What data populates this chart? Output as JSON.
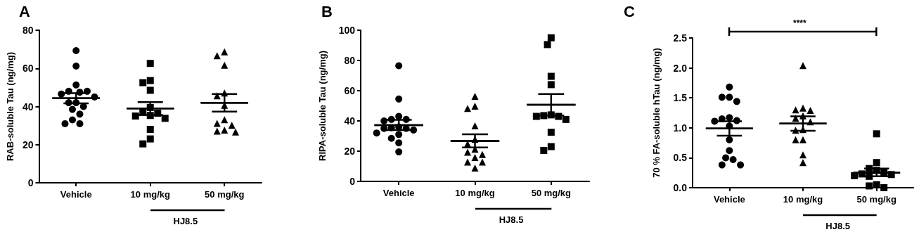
{
  "chart_data": [
    {
      "type": "scatter",
      "title": "A",
      "ylabel": "RAB-soluble Tau (ng/mg)",
      "categories": [
        "Vehicle",
        "10 mg/kg",
        "50 mg/kg"
      ],
      "ylim": [
        0,
        80
      ],
      "yticks": [
        0,
        20,
        40,
        60,
        80
      ],
      "annotations": [
        "HJ8.5"
      ],
      "series": [
        {
          "x": [
            "Vehicle",
            "Vehicle",
            "Vehicle",
            "Vehicle",
            "Vehicle",
            "Vehicle",
            "Vehicle",
            "Vehicle",
            "Vehicle",
            "Vehicle",
            "Vehicle",
            "Vehicle",
            "Vehicle",
            "Vehicle",
            "Vehicle",
            "Vehicle"
          ],
          "values": [
            69.3,
            61.2,
            51.3,
            48,
            47.5,
            48,
            46.5,
            45,
            42,
            42,
            40,
            38.5,
            36,
            33,
            31,
            31
          ],
          "marker": "circle",
          "color": "#000000"
        },
        {
          "x": [
            "10 mg/kg",
            "10 mg/kg",
            "10 mg/kg",
            "10 mg/kg",
            "10 mg/kg",
            "10 mg/kg",
            "10 mg/kg",
            "10 mg/kg",
            "10 mg/kg",
            "10 mg/kg",
            "10 mg/kg",
            "10 mg/kg",
            "10 mg/kg"
          ],
          "values": [
            62.6,
            53.6,
            52.5,
            48.5,
            39.5,
            37,
            36.5,
            35.3,
            35,
            33.8,
            28,
            23,
            20.4
          ],
          "marker": "square",
          "color": "#000000"
        },
        {
          "x": [
            "50 mg/kg",
            "50 mg/kg",
            "50 mg/kg",
            "50 mg/kg",
            "50 mg/kg",
            "50 mg/kg",
            "50 mg/kg",
            "50 mg/kg",
            "50 mg/kg",
            "50 mg/kg",
            "50 mg/kg",
            "50 mg/kg"
          ],
          "values": [
            68,
            66,
            61,
            46.5,
            45,
            40,
            32.5,
            30.5,
            29.5,
            27,
            26.5,
            26
          ],
          "marker": "triangle",
          "color": "#000000"
        },
        {
          "type": "box",
          "x": [
            "Vehicle",
            "10 mg/kg",
            "50 mg/kg"
          ],
          "boxes": [
            {
              "low": 41.7,
              "q1": 44.3,
              "median": 44.3,
              "q3": 44.3,
              "high": 47
            },
            {
              "low": 35.6,
              "q1": 39,
              "median": 39,
              "q3": 39,
              "high": 42.3
            },
            {
              "low": 37.3,
              "q1": 41.9,
              "median": 41.9,
              "q3": 41.9,
              "high": 46.5
            }
          ],
          "color": "#000000"
        }
      ]
    },
    {
      "type": "scatter",
      "title": "B",
      "ylabel": "RIPA-soluble Tau (ng/mg)",
      "categories": [
        "Vehicle",
        "10 mg/kg",
        "50 mg/kg"
      ],
      "ylim": [
        0,
        100
      ],
      "yticks": [
        0,
        20,
        40,
        60,
        80,
        100
      ],
      "annotations": [
        "HJ8.5"
      ],
      "series": [
        {
          "x": [
            "Vehicle",
            "Vehicle",
            "Vehicle",
            "Vehicle",
            "Vehicle",
            "Vehicle",
            "Vehicle",
            "Vehicle",
            "Vehicle",
            "Vehicle",
            "Vehicle",
            "Vehicle",
            "Vehicle",
            "Vehicle",
            "Vehicle",
            "Vehicle"
          ],
          "values": [
            76.5,
            54.5,
            43,
            41,
            41,
            40,
            36,
            35.5,
            35,
            35,
            34,
            32,
            31,
            28.5,
            25.5,
            19.5
          ],
          "marker": "circle",
          "color": "#000000"
        },
        {
          "x": [
            "10 mg/kg",
            "10 mg/kg",
            "10 mg/kg",
            "10 mg/kg",
            "10 mg/kg",
            "10 mg/kg",
            "10 mg/kg",
            "10 mg/kg",
            "10 mg/kg",
            "10 mg/kg",
            "10 mg/kg",
            "10 mg/kg",
            "10 mg/kg"
          ],
          "values": [
            55.5,
            49,
            47.5,
            36,
            27,
            24,
            20.5,
            18.5,
            17,
            15,
            12,
            12,
            8
          ],
          "marker": "triangle",
          "color": "#000000"
        },
        {
          "x": [
            "50 mg/kg",
            "50 mg/kg",
            "50 mg/kg",
            "50 mg/kg",
            "50 mg/kg",
            "50 mg/kg",
            "50 mg/kg",
            "50 mg/kg",
            "50 mg/kg",
            "50 mg/kg",
            "50 mg/kg",
            "50 mg/kg"
          ],
          "values": [
            95,
            90.5,
            69.5,
            64,
            44,
            43.5,
            43,
            43,
            41,
            32.5,
            23,
            20.5
          ],
          "marker": "square",
          "color": "#000000"
        },
        {
          "type": "box",
          "x": [
            "Vehicle",
            "10 mg/kg",
            "50 mg/kg"
          ],
          "boxes": [
            {
              "low": 34,
              "q1": 37.2,
              "median": 37.2,
              "q3": 37.2,
              "high": 40.7
            },
            {
              "low": 22.5,
              "q1": 26.8,
              "median": 26.8,
              "q3": 26.8,
              "high": 31.2
            },
            {
              "low": 43.6,
              "q1": 50.7,
              "median": 50.7,
              "q3": 50.7,
              "high": 57.8
            }
          ],
          "color": "#000000"
        }
      ]
    },
    {
      "type": "scatter",
      "title": "C",
      "ylabel": "70 % FA-soluble hTau (ng/mg)",
      "categories": [
        "Vehicle",
        "10 mg/kg",
        "50 mg/kg"
      ],
      "ylim": [
        0,
        2.5
      ],
      "yticks": [
        {
          "value": 0,
          "label": "0.0"
        },
        {
          "value": 0.5,
          "label": "0.5"
        },
        {
          "value": 1,
          "label": "1.0"
        },
        {
          "value": 1.5,
          "label": "1.5"
        },
        {
          "value": 2,
          "label": "2.0"
        },
        {
          "value": 2.5,
          "label": "2.5"
        }
      ],
      "annotations": [
        "HJ8.5",
        "****"
      ],
      "series": [
        {
          "x": [
            "Vehicle",
            "Vehicle",
            "Vehicle",
            "Vehicle",
            "Vehicle",
            "Vehicle",
            "Vehicle",
            "Vehicle",
            "Vehicle",
            "Vehicle",
            "Vehicle",
            "Vehicle",
            "Vehicle",
            "Vehicle",
            "Vehicle"
          ],
          "values": [
            1.68,
            1.51,
            1.51,
            1.44,
            1.17,
            1.15,
            1.12,
            1.11,
            1.03,
            0.8,
            0.62,
            0.5,
            0.47,
            0.38,
            0.38
          ],
          "marker": "circle",
          "color": "#000000"
        },
        {
          "x": [
            "10 mg/kg",
            "10 mg/kg",
            "10 mg/kg",
            "10 mg/kg",
            "10 mg/kg",
            "10 mg/kg",
            "10 mg/kg",
            "10 mg/kg",
            "10 mg/kg",
            "10 mg/kg",
            "10 mg/kg",
            "10 mg/kg",
            "10 mg/kg"
          ],
          "values": [
            2.02,
            1.31,
            1.28,
            1.27,
            1.18,
            1.14,
            1.08,
            0.95,
            0.94,
            0.78,
            0.78,
            0.53,
            0.4
          ],
          "marker": "triangle",
          "color": "#000000"
        },
        {
          "x": [
            "50 mg/kg",
            "50 mg/kg",
            "50 mg/kg",
            "50 mg/kg",
            "50 mg/kg",
            "50 mg/kg",
            "50 mg/kg",
            "50 mg/kg",
            "50 mg/kg",
            "50 mg/kg",
            "50 mg/kg",
            "50 mg/kg"
          ],
          "values": [
            0.9,
            0.42,
            0.32,
            0.29,
            0.25,
            0.23,
            0.22,
            0.2,
            0.19,
            0.05,
            0.03,
            0
          ],
          "marker": "square",
          "color": "#000000"
        },
        {
          "type": "box",
          "x": [
            "Vehicle",
            "10 mg/kg",
            "50 mg/kg"
          ],
          "boxes": [
            {
              "low": 0.87,
              "q1": 0.99,
              "median": 0.99,
              "q3": 0.99,
              "high": 1.11
            },
            {
              "low": 0.95,
              "q1": 1.07,
              "median": 1.07,
              "q3": 1.07,
              "high": 1.19
            },
            {
              "low": 0.19,
              "q1": 0.25,
              "median": 0.25,
              "q3": 0.25,
              "high": 0.32
            }
          ],
          "color": "#000000"
        }
      ]
    }
  ]
}
